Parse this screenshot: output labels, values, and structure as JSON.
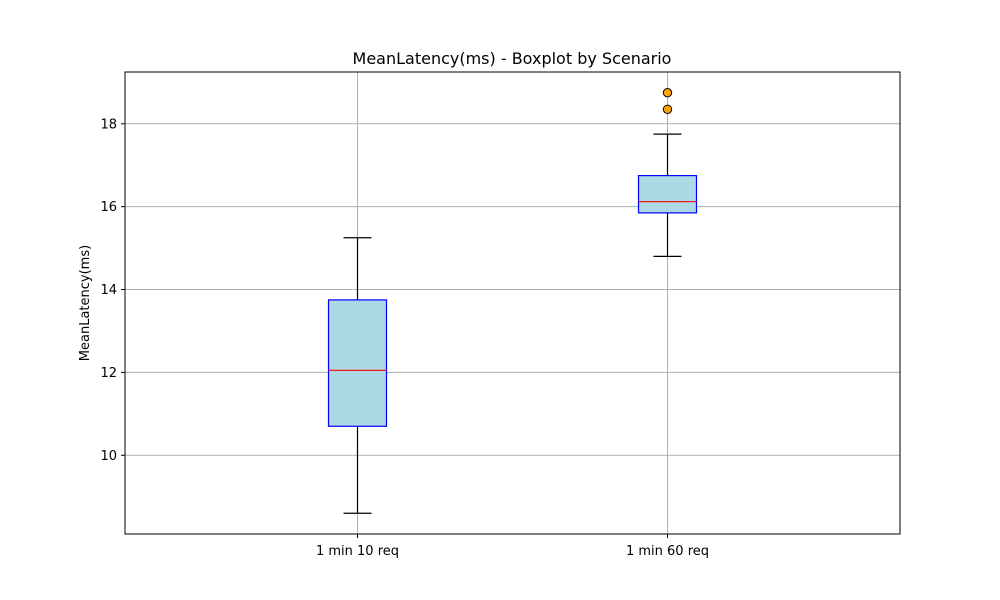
{
  "chart_data": {
    "type": "boxplot",
    "title": "MeanLatency(ms) - Boxplot by Scenario",
    "xlabel": "",
    "ylabel": "MeanLatency(ms)",
    "categories": [
      "1 min 10 req",
      "1 min 60 req"
    ],
    "boxes": [
      {
        "label": "1 min 10 req",
        "whisker_low": 8.6,
        "q1": 10.7,
        "median": 12.05,
        "q3": 13.75,
        "whisker_high": 15.25,
        "outliers": []
      },
      {
        "label": "1 min 60 req",
        "whisker_low": 14.8,
        "q1": 15.85,
        "median": 16.12,
        "q3": 16.75,
        "whisker_high": 17.75,
        "outliers": [
          18.35,
          18.75
        ]
      }
    ],
    "ylim": [
      8.1,
      19.25
    ],
    "yticks": [
      10,
      12,
      14,
      16,
      18
    ],
    "grid": true,
    "legend": "none",
    "colors": {
      "box_fill": "#add8e6",
      "box_edge": "#0000ff",
      "median": "#ff0000",
      "whisker": "#000000",
      "outlier_fill": "#ffa500",
      "outlier_edge": "#000000",
      "grid": "#b0b0b0"
    }
  }
}
